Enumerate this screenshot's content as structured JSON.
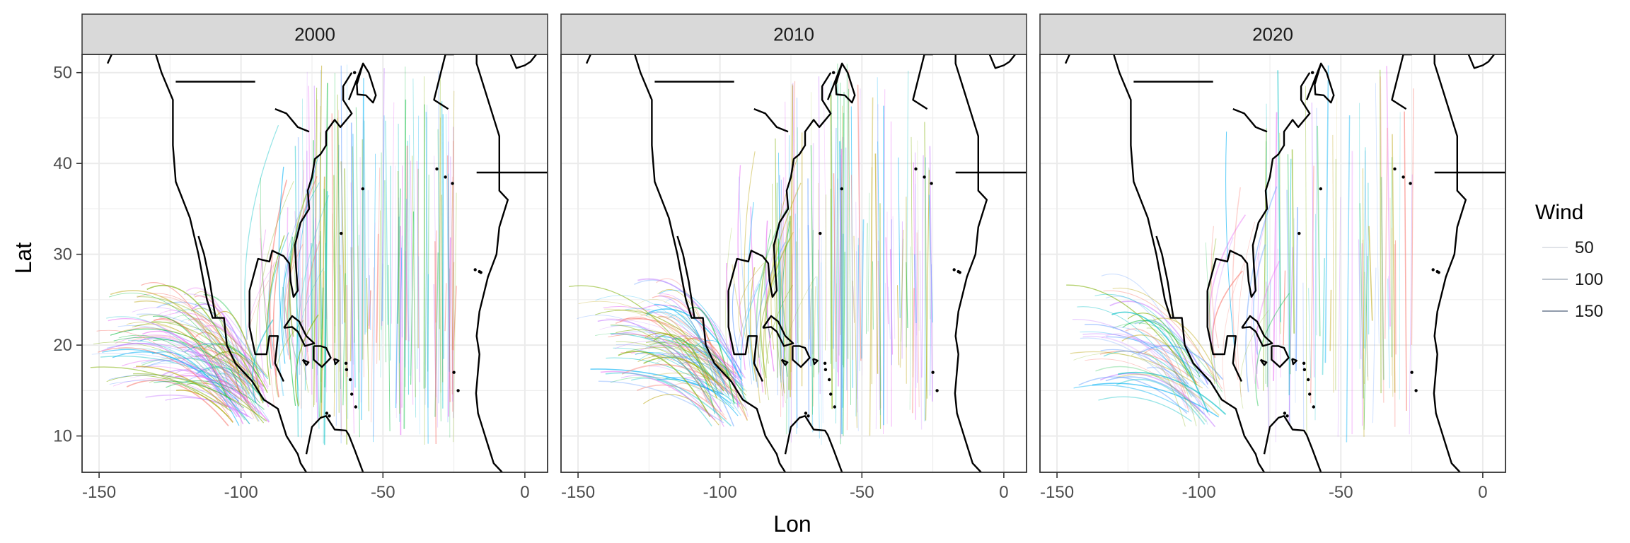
{
  "chart_data": {
    "type": "faceted-map-tracks",
    "xlabel": "Lon",
    "ylabel": "Lat",
    "xlim": [
      -156,
      8
    ],
    "ylim": [
      6,
      52
    ],
    "xticks": [
      -150,
      -100,
      -50,
      0
    ],
    "xtick_labels": [
      "-150",
      "-100",
      "-50",
      "0"
    ],
    "yticks": [
      10,
      20,
      30,
      40,
      50
    ],
    "ytick_labels": [
      "10",
      "20",
      "30",
      "40",
      "50"
    ],
    "grid": true,
    "facets": [
      {
        "label": "2000",
        "density": 1.0
      },
      {
        "label": "2010",
        "density": 0.85
      },
      {
        "label": "2020",
        "density": 0.45
      }
    ],
    "legend": {
      "title": "Wind",
      "placement": "right",
      "entries": [
        {
          "label": "50",
          "value": 50
        },
        {
          "label": "100",
          "value": 100
        },
        {
          "label": "150",
          "value": 150
        }
      ]
    },
    "colors": {
      "strip": "#d9d9d9",
      "grid": "#ebebeb",
      "coast": "#000000",
      "tracks": [
        "#00bfc4",
        "#7cae00",
        "#f8766d",
        "#c77cff",
        "#619cff",
        "#00ba38",
        "#e76bf3",
        "#b79f00",
        "#00b0f6"
      ]
    }
  }
}
